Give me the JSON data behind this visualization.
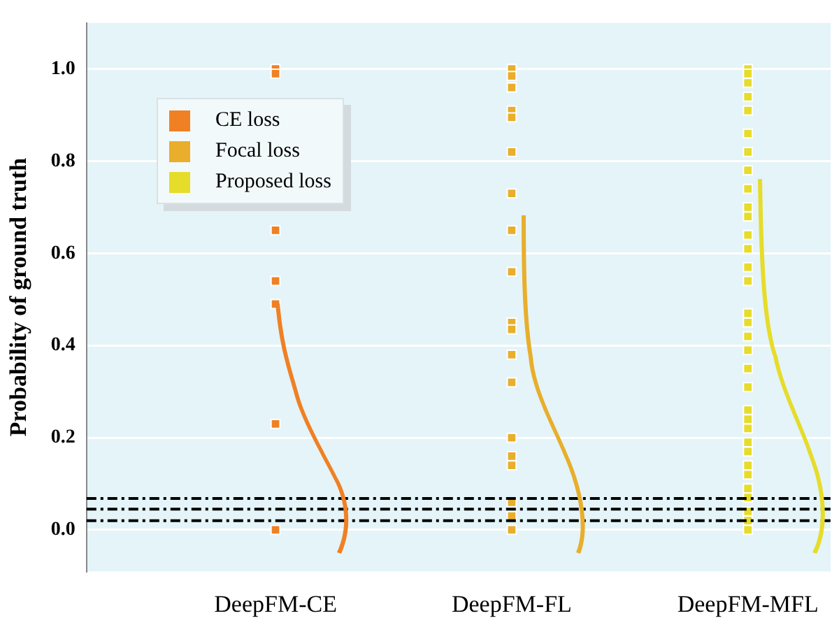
{
  "chart_data": {
    "type": "scatter",
    "ylabel": "Probability of ground truth",
    "marker": "square",
    "grid": "y",
    "legend": "top left",
    "categories": [
      "DeepFM-CE",
      "DeepFM-FL",
      "DeepFM-MFL"
    ],
    "ylim": [
      -0.09,
      1.1
    ],
    "yticks": [
      {
        "value": 0,
        "label": "0.0"
      },
      {
        "value": 0.2,
        "label": "0.2"
      },
      {
        "value": 0.4,
        "label": "0.4"
      },
      {
        "value": 0.6,
        "label": "0.6"
      },
      {
        "value": 0.8,
        "label": "0.8"
      },
      {
        "value": 1,
        "label": "1.0"
      }
    ],
    "series": [
      {
        "name": "CE loss",
        "color": "#f08024",
        "x": [
          "DeepFM-CE",
          "DeepFM-CE",
          "DeepFM-CE",
          "DeepFM-CE",
          "DeepFM-CE",
          "DeepFM-CE",
          "DeepFM-CE"
        ],
        "values": [
          1.0,
          0.99,
          0.65,
          0.54,
          0.49,
          0.23,
          0
        ]
      },
      {
        "name": "Focal loss",
        "color": "#e8ae2c",
        "x": [
          "DeepFM-FL",
          "DeepFM-FL",
          "DeepFM-FL",
          "DeepFM-FL",
          "DeepFM-FL",
          "DeepFM-FL",
          "DeepFM-FL",
          "DeepFM-FL",
          "DeepFM-FL",
          "DeepFM-FL",
          "DeepFM-FL",
          "DeepFM-FL",
          "DeepFM-FL",
          "DeepFM-FL",
          "DeepFM-FL",
          "DeepFM-FL",
          "DeepFM-FL",
          "DeepFM-FL",
          "DeepFM-FL"
        ],
        "values": [
          1.0,
          0.985,
          0.96,
          0.91,
          0.895,
          0.82,
          0.73,
          0.65,
          0.56,
          0.45,
          0.435,
          0.38,
          0.32,
          0.2,
          0.16,
          0.14,
          0.06,
          0.03,
          0
        ]
      },
      {
        "name": "Proposed loss",
        "color": "#e6dc2a",
        "x": [
          "DeepFM-MFL",
          "DeepFM-MFL",
          "DeepFM-MFL",
          "DeepFM-MFL",
          "DeepFM-MFL",
          "DeepFM-MFL",
          "DeepFM-MFL",
          "DeepFM-MFL",
          "DeepFM-MFL",
          "DeepFM-MFL",
          "DeepFM-MFL",
          "DeepFM-MFL",
          "DeepFM-MFL",
          "DeepFM-MFL",
          "DeepFM-MFL",
          "DeepFM-MFL",
          "DeepFM-MFL",
          "DeepFM-MFL",
          "DeepFM-MFL",
          "DeepFM-MFL",
          "DeepFM-MFL",
          "DeepFM-MFL",
          "DeepFM-MFL",
          "DeepFM-MFL",
          "DeepFM-MFL",
          "DeepFM-MFL",
          "DeepFM-MFL",
          "DeepFM-MFL",
          "DeepFM-MFL",
          "DeepFM-MFL",
          "DeepFM-MFL",
          "DeepFM-MFL",
          "DeepFM-MFL"
        ],
        "values": [
          1.0,
          0.99,
          0.97,
          0.94,
          0.91,
          0.86,
          0.82,
          0.78,
          0.74,
          0.7,
          0.68,
          0.64,
          0.61,
          0.57,
          0.54,
          0.47,
          0.45,
          0.42,
          0.39,
          0.35,
          0.31,
          0.26,
          0.24,
          0.22,
          0.19,
          0.17,
          0.14,
          0.12,
          0.09,
          0.07,
          0.04,
          0.02,
          0
        ]
      }
    ],
    "ref_lines": [
      {
        "axis": "y",
        "value": 0.02,
        "color": "#000000",
        "line_style": "dashed"
      },
      {
        "axis": "y",
        "value": 0.045,
        "color": "#000000",
        "line_style": "dashed"
      },
      {
        "axis": "y",
        "value": 0.068,
        "color": "#000000",
        "line_style": "dashed"
      }
    ]
  }
}
